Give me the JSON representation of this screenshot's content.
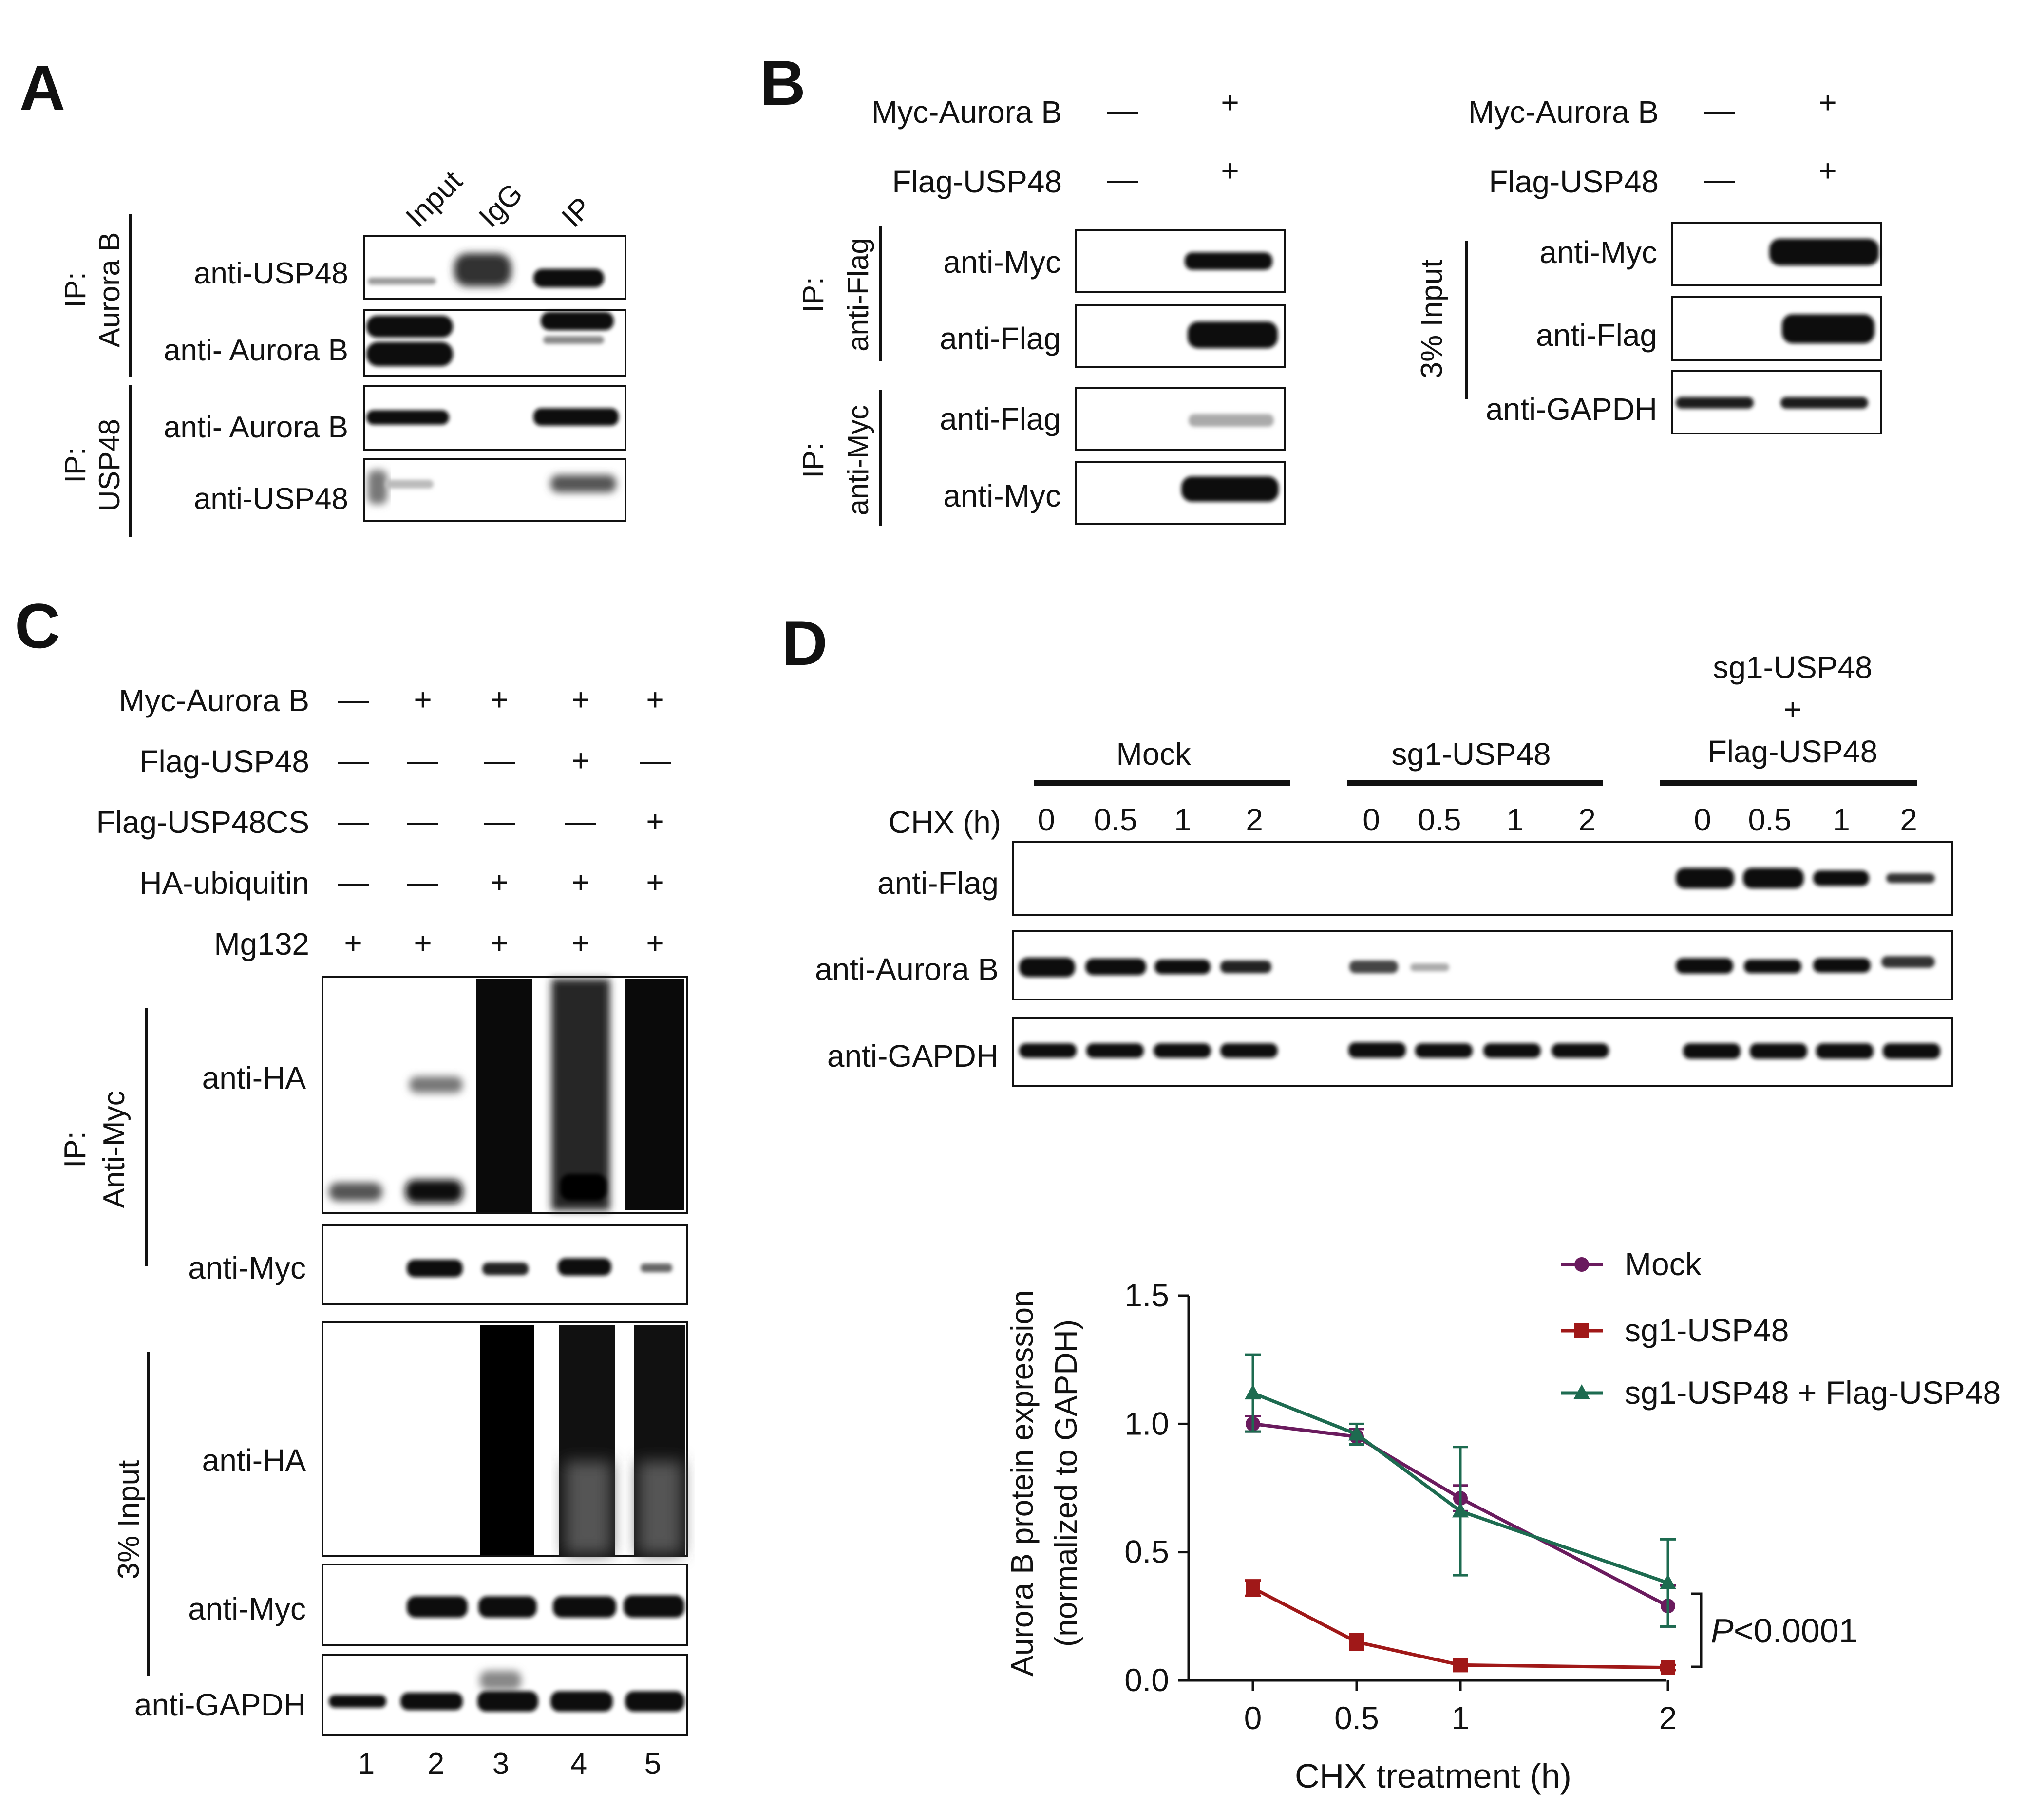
{
  "panels": {
    "A": {
      "letter": "A",
      "lane_labels": [
        "Input",
        "IgG",
        "IP"
      ],
      "group1": {
        "prefix": "IP:",
        "name": "Aurora B"
      },
      "group2": {
        "prefix": "IP:",
        "name": "USP48"
      },
      "rows": [
        "anti-USP48",
        "anti- Aurora B",
        "anti- Aurora B",
        "anti-USP48"
      ]
    },
    "B": {
      "letter": "B",
      "conditions": [
        {
          "name": "Myc-Aurora B",
          "values": [
            "—",
            "+"
          ]
        },
        {
          "name": "Flag-USP48",
          "values": [
            "—",
            "+"
          ]
        }
      ],
      "group_flag": {
        "prefix": "IP:",
        "name": "anti-Flag"
      },
      "group_myc": {
        "prefix": "IP:",
        "name": "anti-Myc"
      },
      "group_input": "3% Input",
      "ip_rows": [
        "anti-Myc",
        "anti-Flag",
        "anti-Flag",
        "anti-Myc"
      ],
      "input_rows": [
        "anti-Myc",
        "anti-Flag",
        "anti-GAPDH"
      ]
    },
    "C": {
      "letter": "C",
      "conditions": [
        {
          "name": "Myc-Aurora B",
          "values": [
            "—",
            "+",
            "+",
            "+",
            "+"
          ]
        },
        {
          "name": "Flag-USP48",
          "values": [
            "—",
            "—",
            "—",
            "+",
            "—"
          ]
        },
        {
          "name": "Flag-USP48CS",
          "values": [
            "—",
            "—",
            "—",
            "—",
            "+"
          ]
        },
        {
          "name": "HA-ubiquitin",
          "values": [
            "—",
            "—",
            "+",
            "+",
            "+"
          ]
        },
        {
          "name": "Mg132",
          "values": [
            "+",
            "+",
            "+",
            "+",
            "+"
          ]
        }
      ],
      "group_ip": {
        "prefix": "IP:",
        "name": "Anti-Myc"
      },
      "group_input": "3% Input",
      "rows": [
        "anti-HA",
        "anti-Myc",
        "anti-HA",
        "anti-Myc",
        "anti-GAPDH"
      ],
      "lanes": [
        "1",
        "2",
        "3",
        "4",
        "5"
      ]
    },
    "D": {
      "letter": "D",
      "groups": [
        {
          "label": "Mock"
        },
        {
          "label": "sg1-USP48"
        },
        {
          "label_lines": [
            "sg1-USP48",
            "+",
            "Flag-USP48"
          ]
        }
      ],
      "time_axis_label": "CHX (h)",
      "times": [
        "0",
        "0.5",
        "1",
        "2"
      ],
      "rows": [
        "anti-Flag",
        "anti-Aurora B",
        "anti-GAPDH"
      ]
    }
  },
  "chart_data": {
    "type": "line",
    "xlabel": "CHX treatment (h)",
    "ylabel_lines": [
      "Aurora B protein expression",
      "(normalized to GAPDH)"
    ],
    "x": [
      0,
      0.5,
      1,
      2
    ],
    "x_ticks": [
      "0",
      "0.5",
      "1",
      "2"
    ],
    "y_ticks": [
      "0.0",
      "0.5",
      "1.0",
      "1.5"
    ],
    "ylim": [
      0,
      1.5
    ],
    "series": [
      {
        "name": "Mock",
        "color": "#6a1b5e",
        "marker": "circle",
        "values": [
          1.0,
          0.95,
          0.71,
          0.29
        ],
        "errors": [
          0.03,
          0.03,
          0.05,
          0.08
        ]
      },
      {
        "name": "sg1-USP48",
        "color": "#a01818",
        "marker": "square",
        "values": [
          0.36,
          0.15,
          0.06,
          0.05
        ],
        "errors": [
          0.03,
          0.03,
          0.01,
          0.01
        ]
      },
      {
        "name": "sg1-USP48 + Flag-USP48",
        "color": "#1d6b50",
        "marker": "triangle",
        "values": [
          1.12,
          0.96,
          0.66,
          0.38
        ],
        "errors": [
          0.15,
          0.04,
          0.25,
          0.17
        ]
      }
    ],
    "annotation": {
      "italic": "P",
      "text": "<0.0001"
    }
  }
}
